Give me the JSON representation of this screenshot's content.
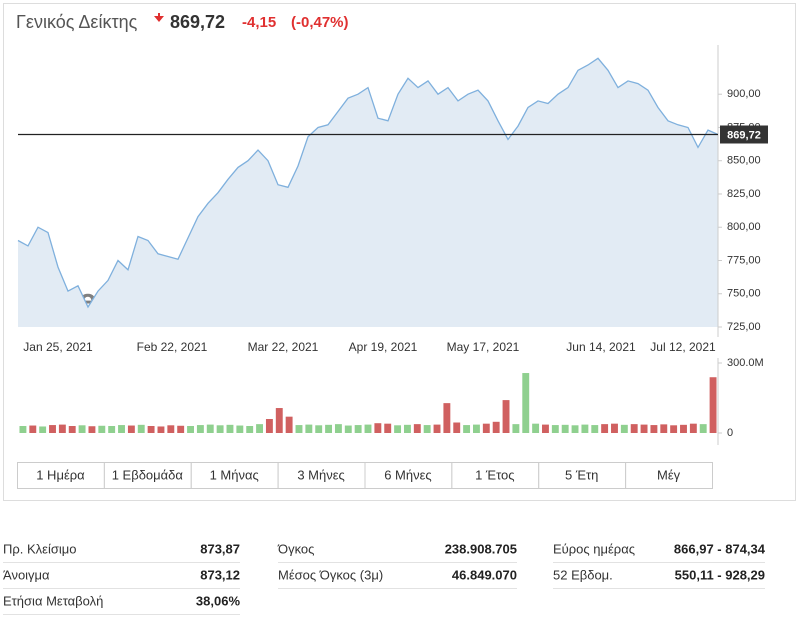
{
  "header": {
    "title": "Γενικός Δείκτης",
    "price": "869,72",
    "change": "-4,15",
    "change_pct": "(-0,47%)"
  },
  "chart_data": [
    {
      "type": "line",
      "watermark": "investing.com",
      "color": "#7fb0dd",
      "fill": "#e2ebf4",
      "values": [
        790,
        786,
        800,
        796,
        770,
        752,
        756,
        740,
        752,
        760,
        775,
        768,
        793,
        790,
        780,
        778,
        776,
        792,
        808,
        818,
        826,
        836,
        845,
        850,
        858,
        850,
        832,
        830,
        846,
        868,
        875,
        877,
        887,
        897,
        900,
        905,
        882,
        880,
        900,
        912,
        905,
        910,
        900,
        905,
        895,
        900,
        903,
        895,
        880,
        866,
        876,
        890,
        895,
        893,
        900,
        905,
        918,
        922,
        927,
        918,
        905,
        910,
        908,
        903,
        890,
        880,
        877,
        875,
        860,
        873,
        869.72
      ],
      "xlim": [
        0,
        70
      ],
      "xticks": [
        {
          "value": 4,
          "label": "Jan 25, 2021"
        },
        {
          "value": 15.4,
          "label": "Feb 22, 2021"
        },
        {
          "value": 26.5,
          "label": "Mar 22, 2021"
        },
        {
          "value": 36.5,
          "label": "Apr 19, 2021"
        },
        {
          "value": 46.5,
          "label": "May 17, 2021"
        },
        {
          "value": 58.3,
          "label": "Jun 14, 2021"
        },
        {
          "value": 66.5,
          "label": "Jul 12, 2021"
        }
      ],
      "ylim": [
        725,
        937
      ],
      "yticks": [
        {
          "value": 725,
          "label": "725,00"
        },
        {
          "value": 750,
          "label": "750,00"
        },
        {
          "value": 775,
          "label": "775,00"
        },
        {
          "value": 800,
          "label": "800,00"
        },
        {
          "value": 825,
          "label": "825,00"
        },
        {
          "value": 850,
          "label": "850,00"
        },
        {
          "value": 875,
          "label": "875,00"
        },
        {
          "value": 900,
          "label": "900,00"
        }
      ],
      "price_line": {
        "value": 869.72,
        "label": "869,72"
      }
    },
    {
      "type": "bar",
      "values": [
        30,
        32,
        28,
        34,
        36,
        30,
        33,
        29,
        31,
        30,
        34,
        32,
        35,
        30,
        28,
        33,
        31,
        30,
        34,
        36,
        33,
        35,
        32,
        30,
        38,
        60,
        107,
        70,
        34,
        36,
        33,
        35,
        38,
        32,
        34,
        36,
        42,
        40,
        33,
        35,
        38,
        34,
        36,
        128,
        45,
        34,
        36,
        40,
        48,
        141,
        38,
        257,
        40,
        36,
        34,
        35,
        33,
        36,
        34,
        38,
        40,
        35,
        38,
        36,
        34,
        37,
        33,
        35,
        40,
        38,
        239
      ],
      "colors": [
        "#8fd08f",
        "#d06060",
        "#8fd08f",
        "#d06060",
        "#d06060",
        "#d06060",
        "#8fd08f",
        "#d06060",
        "#8fd08f",
        "#8fd08f",
        "#8fd08f",
        "#d06060",
        "#8fd08f",
        "#d06060",
        "#d06060",
        "#d06060",
        "#d06060",
        "#8fd08f",
        "#8fd08f",
        "#8fd08f",
        "#8fd08f",
        "#8fd08f",
        "#8fd08f",
        "#8fd08f",
        "#8fd08f",
        "#d06060",
        "#d06060",
        "#d06060",
        "#8fd08f",
        "#8fd08f",
        "#8fd08f",
        "#8fd08f",
        "#8fd08f",
        "#8fd08f",
        "#8fd08f",
        "#8fd08f",
        "#d06060",
        "#d06060",
        "#8fd08f",
        "#8fd08f",
        "#d06060",
        "#8fd08f",
        "#d06060",
        "#d06060",
        "#d06060",
        "#8fd08f",
        "#8fd08f",
        "#d06060",
        "#d06060",
        "#d06060",
        "#8fd08f",
        "#8fd08f",
        "#8fd08f",
        "#d06060",
        "#8fd08f",
        "#8fd08f",
        "#8fd08f",
        "#8fd08f",
        "#8fd08f",
        "#d06060",
        "#d06060",
        "#8fd08f",
        "#d06060",
        "#d06060",
        "#d06060",
        "#d06060",
        "#d06060",
        "#d06060",
        "#d06060",
        "#8fd08f",
        "#d06060"
      ],
      "ylim": [
        0,
        300
      ],
      "yticks": [
        0,
        {
          "value": 300,
          "label": "300.0M"
        }
      ]
    }
  ],
  "tabs": [
    "1 Ημέρα",
    "1 Εβδομάδα",
    "1 Μήνας",
    "3 Μήνες",
    "6 Μήνες",
    "1 Έτος",
    "5 Έτη",
    "Μέγ"
  ],
  "stats": [
    [
      [
        "Πρ. Κλείσιμο",
        "873,87"
      ],
      [
        "Άνοιγμα",
        "873,12"
      ],
      [
        "Ετήσια Μεταβολή",
        "38,06%"
      ]
    ],
    [
      [
        "Όγκος",
        "238.908.705"
      ],
      [
        "Μέσος Όγκος (3μ)",
        "46.849.070"
      ]
    ],
    [
      [
        "Εύρος ημέρας",
        "866,97 - 874,34"
      ],
      [
        "52 Εβδομ.",
        "550,11 - 928,29"
      ]
    ]
  ]
}
